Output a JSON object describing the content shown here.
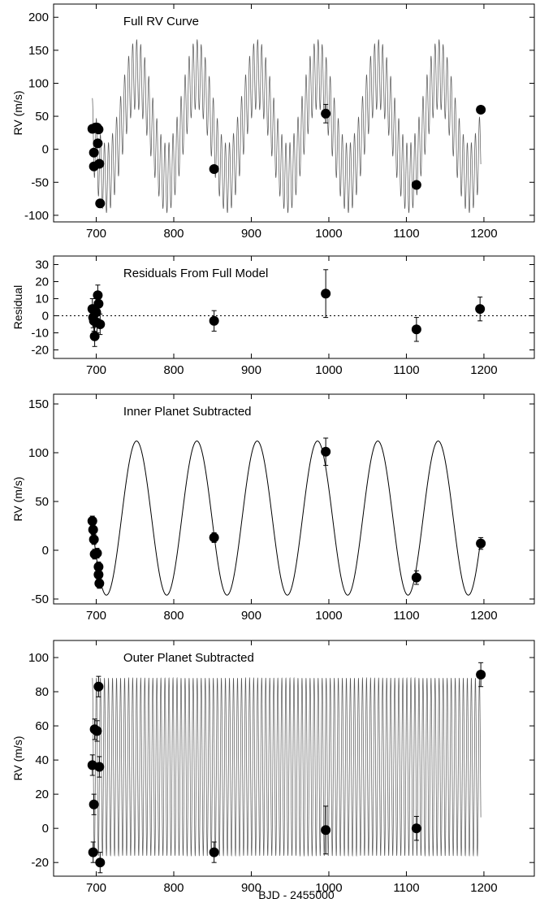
{
  "figure": {
    "xlabel": "BJD - 2455000"
  },
  "chart_data": [
    {
      "type": "line",
      "title": "Full RV Curve",
      "ylabel": "RV (m/s)",
      "xlim": [
        645,
        1265
      ],
      "ylim": [
        -110,
        220
      ],
      "xticks": [
        700,
        800,
        900,
        1000,
        1100,
        1200
      ],
      "yticks": [
        -100,
        -50,
        0,
        50,
        100,
        150,
        200
      ],
      "model": {
        "name": "",
        "x_range": [
          695,
          1196
        ],
        "outer_period": 78,
        "outer_amplitude": 79,
        "inner_period": 5.2,
        "inner_amplitude": 52,
        "offset": 35
      },
      "points": [
        {
          "x": 695,
          "y": 31,
          "err": 5
        },
        {
          "x": 697,
          "y": -26,
          "err": 5
        },
        {
          "x": 697,
          "y": -5,
          "err": 5
        },
        {
          "x": 699,
          "y": 33,
          "err": 5
        },
        {
          "x": 701,
          "y": 33,
          "err": 5
        },
        {
          "x": 702,
          "y": 9,
          "err": 5
        },
        {
          "x": 703,
          "y": 30,
          "err": 5
        },
        {
          "x": 704,
          "y": -22,
          "err": 5
        },
        {
          "x": 705,
          "y": -82,
          "err": 5
        },
        {
          "x": 852,
          "y": -30,
          "err": 5
        },
        {
          "x": 996,
          "y": 54,
          "err": 14
        },
        {
          "x": 1113,
          "y": -54,
          "err": 5
        },
        {
          "x": 1196,
          "y": 60,
          "err": 5
        }
      ]
    },
    {
      "type": "scatter",
      "title": "Residuals From Full Model",
      "ylabel": "Residual",
      "xlim": [
        645,
        1265
      ],
      "ylim": [
        -25,
        35
      ],
      "xticks": [
        700,
        800,
        900,
        1000,
        1100,
        1200
      ],
      "yticks": [
        -20,
        -10,
        0,
        10,
        20,
        30
      ],
      "zero_line": true,
      "points": [
        {
          "x": 695,
          "y": 4,
          "err": 6
        },
        {
          "x": 696,
          "y": -1,
          "err": 6
        },
        {
          "x": 697,
          "y": -3,
          "err": 6
        },
        {
          "x": 698,
          "y": -12,
          "err": 6
        },
        {
          "x": 700,
          "y": 2,
          "err": 6
        },
        {
          "x": 701,
          "y": -4,
          "err": 6
        },
        {
          "x": 702,
          "y": 12,
          "err": 6
        },
        {
          "x": 703,
          "y": 7,
          "err": 6
        },
        {
          "x": 705,
          "y": -5,
          "err": 6
        },
        {
          "x": 852,
          "y": -3,
          "err": 6
        },
        {
          "x": 996,
          "y": 13,
          "err": 14
        },
        {
          "x": 1113,
          "y": -8,
          "err": 7
        },
        {
          "x": 1195,
          "y": 4,
          "err": 7
        }
      ]
    },
    {
      "type": "line",
      "title": "Inner Planet Subtracted",
      "ylabel": "RV (m/s)",
      "xlim": [
        645,
        1265
      ],
      "ylim": [
        -55,
        160
      ],
      "xticks": [
        700,
        800,
        900,
        1000,
        1100,
        1200
      ],
      "yticks": [
        -50,
        0,
        50,
        100,
        150
      ],
      "model": {
        "name": "",
        "x_range": [
          695,
          1196
        ],
        "period": 77.8,
        "amplitude": 79,
        "offset": 33,
        "peak_x": 752
      },
      "points": [
        {
          "x": 695,
          "y": 30,
          "err": 5
        },
        {
          "x": 696,
          "y": 21,
          "err": 5
        },
        {
          "x": 697,
          "y": 11,
          "err": 5
        },
        {
          "x": 698,
          "y": -4,
          "err": 5
        },
        {
          "x": 701,
          "y": -3,
          "err": 5
        },
        {
          "x": 703,
          "y": -17,
          "err": 5
        },
        {
          "x": 703,
          "y": -25,
          "err": 5
        },
        {
          "x": 704,
          "y": -34,
          "err": 5
        },
        {
          "x": 852,
          "y": 13,
          "err": 5
        },
        {
          "x": 996,
          "y": 101,
          "err": 14
        },
        {
          "x": 1113,
          "y": -28,
          "err": 7
        },
        {
          "x": 1196,
          "y": 7,
          "err": 6
        }
      ]
    },
    {
      "type": "line",
      "title": "Outer Planet Subtracted",
      "ylabel": "RV (m/s)",
      "xlim": [
        645,
        1265
      ],
      "ylim": [
        -28,
        110
      ],
      "xticks": [
        700,
        800,
        900,
        1000,
        1100,
        1200
      ],
      "yticks": [
        -20,
        0,
        20,
        40,
        60,
        80,
        100
      ],
      "model": {
        "name": "",
        "x_range": [
          695,
          1196
        ],
        "period": 5.2,
        "amplitude": 52,
        "offset": 36
      },
      "points": [
        {
          "x": 695,
          "y": 37,
          "err": 6
        },
        {
          "x": 696,
          "y": -14,
          "err": 6
        },
        {
          "x": 697,
          "y": 14,
          "err": 6
        },
        {
          "x": 698,
          "y": 58,
          "err": 6
        },
        {
          "x": 701,
          "y": 57,
          "err": 6
        },
        {
          "x": 703,
          "y": 83,
          "err": 6
        },
        {
          "x": 704,
          "y": 36,
          "err": 6
        },
        {
          "x": 705,
          "y": -20,
          "err": 6
        },
        {
          "x": 852,
          "y": -14,
          "err": 6
        },
        {
          "x": 996,
          "y": -1,
          "err": 14
        },
        {
          "x": 1113,
          "y": 0,
          "err": 7
        },
        {
          "x": 1196,
          "y": 90,
          "err": 7
        }
      ]
    }
  ]
}
